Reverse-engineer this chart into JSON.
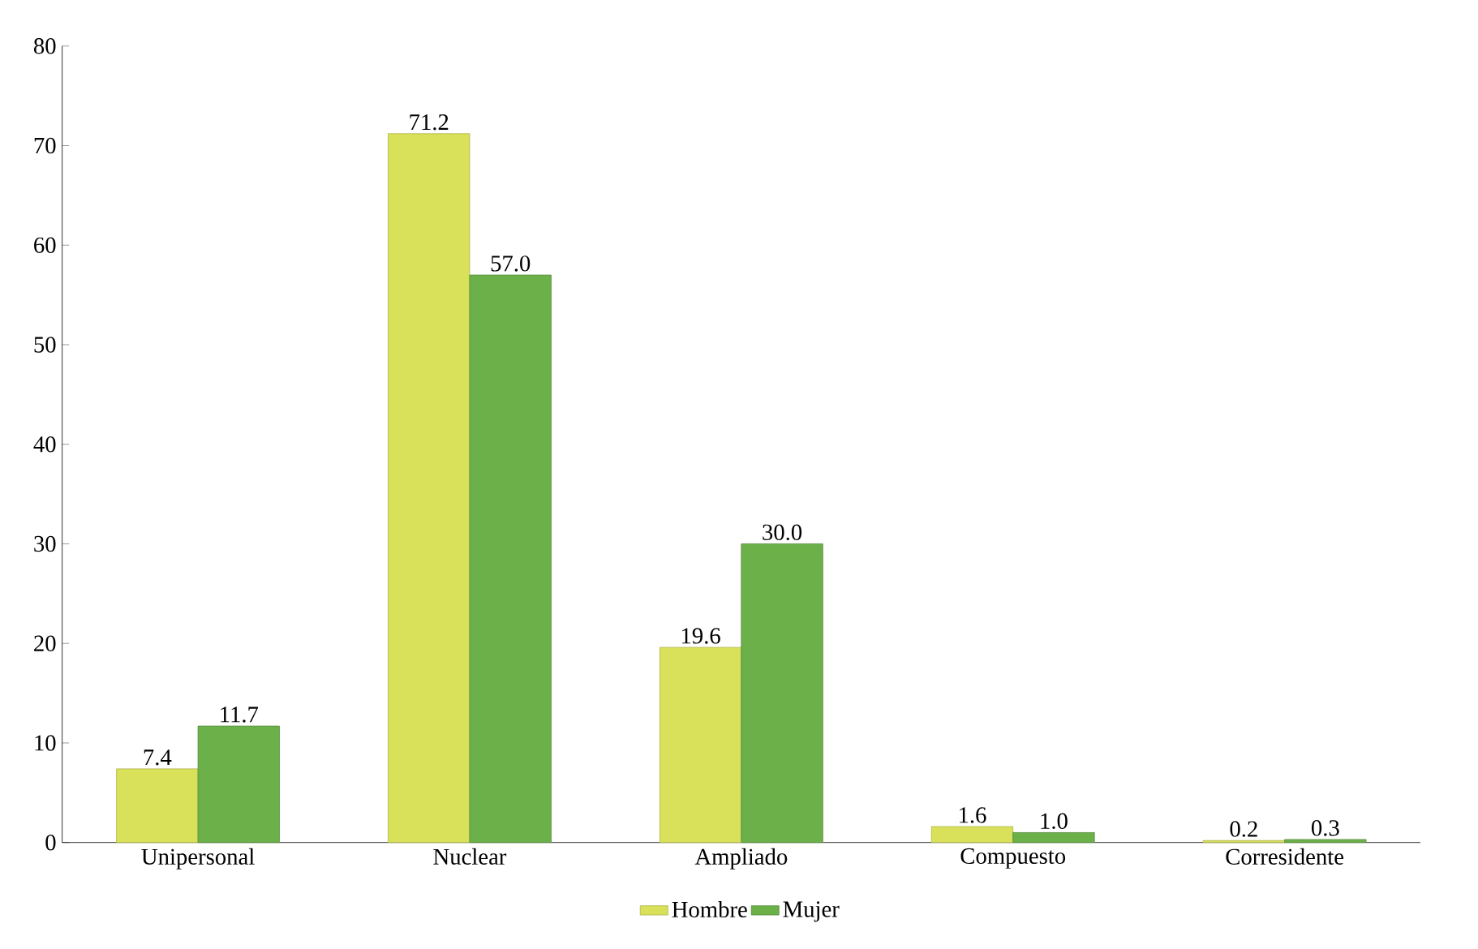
{
  "chart_data": {
    "type": "bar",
    "categories": [
      "Unipersonal",
      "Nuclear",
      "Ampliado",
      "Compuesto",
      "Corresidente"
    ],
    "series": [
      {
        "name": "Hombre",
        "color": "#d9e05a",
        "values": [
          7.4,
          71.2,
          19.6,
          1.6,
          0.2
        ],
        "value_labels": [
          "7.4",
          "71.2",
          "19.6",
          "1.6",
          "0.2"
        ]
      },
      {
        "name": "Mujer",
        "color": "#6cb04a",
        "values": [
          11.7,
          57.0,
          30.0,
          1.0,
          0.3
        ],
        "value_labels": [
          "11.7",
          "57.0",
          "30.0",
          "1.0",
          "0.3"
        ]
      }
    ],
    "ylim": [
      0,
      80
    ],
    "yticks": [
      0,
      10,
      20,
      30,
      40,
      50,
      60,
      70,
      80
    ],
    "grid": false,
    "legend": "bottom"
  }
}
